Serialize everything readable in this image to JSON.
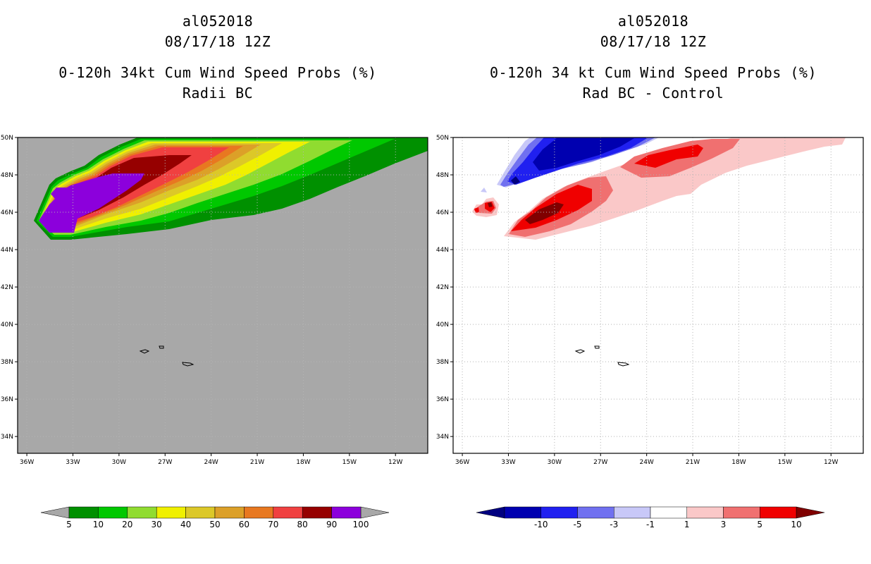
{
  "left_panel": {
    "title_line1": "al052018",
    "title_line2": "08/17/18 12Z",
    "title_line3": "0-120h 34kt Cum Wind Speed Probs (%)",
    "title_line4": "Radii BC",
    "background_color": "#a8a8a8",
    "colorbar": {
      "labels": [
        "5",
        "10",
        "20",
        "30",
        "40",
        "50",
        "60",
        "70",
        "80",
        "90",
        "100"
      ],
      "colors": [
        "#009000",
        "#00c800",
        "#90dc30",
        "#f0f000",
        "#dcc828",
        "#dca028",
        "#e87820",
        "#f04040",
        "#960000",
        "#8c00dc"
      ],
      "below_color": "#a8a8a8",
      "above_color": "#a8a8a8"
    }
  },
  "right_panel": {
    "title_line1": "al052018",
    "title_line2": "08/17/18 12Z",
    "title_line3": "0-120h 34 kt Cum Wind Speed Probs (%)",
    "title_line4": "Rad BC - Control",
    "background_color": "#ffffff",
    "colorbar": {
      "labels": [
        "-10",
        "-5",
        "-3",
        "-1",
        "1",
        "3",
        "5",
        "10"
      ],
      "colors": [
        "#0000b0",
        "#2020f0",
        "#7070f0",
        "#c8c8f8",
        "#ffffff",
        "#fac8c8",
        "#f07070",
        "#f00000"
      ],
      "below_color": "#000080",
      "above_color": "#800000"
    }
  },
  "chart_data": [
    {
      "type": "heatmap",
      "title": "0-120h 34kt Cum Wind Speed Probs (%) - Radii BC",
      "x_ticks": [
        "36W",
        "33W",
        "30W",
        "27W",
        "24W",
        "21W",
        "18W",
        "15W",
        "12W"
      ],
      "y_ticks": [
        "50N",
        "48N",
        "46N",
        "44N",
        "42N",
        "40N",
        "38N",
        "36N",
        "34N"
      ],
      "xlim": [
        -36.6,
        -9.9
      ],
      "ylim": [
        33.1,
        50
      ],
      "levels": [
        5,
        10,
        20,
        30,
        40,
        50,
        60,
        70,
        80,
        90,
        100
      ],
      "max_region": "100 near 46N 34W-32W, decreasing toward east-northeast"
    },
    {
      "type": "heatmap",
      "title": "0-120h 34 kt Cum Wind Speed Probs (%) - Rad BC - Control",
      "x_ticks": [
        "36W",
        "33W",
        "30W",
        "27W",
        "24W",
        "21W",
        "18W",
        "15W",
        "12W"
      ],
      "y_ticks": [
        "50N",
        "48N",
        "46N",
        "44N",
        "42N",
        "40N",
        "38N",
        "36N",
        "34N"
      ],
      "xlim": [
        -36.6,
        -9.9
      ],
      "ylim": [
        33.1,
        50
      ],
      "levels": [
        -10,
        -5,
        -3,
        -1,
        1,
        3,
        5,
        10
      ],
      "min_region": "below -10 near 49N 30W",
      "max_region": "above 10 near 46N 30W"
    }
  ]
}
